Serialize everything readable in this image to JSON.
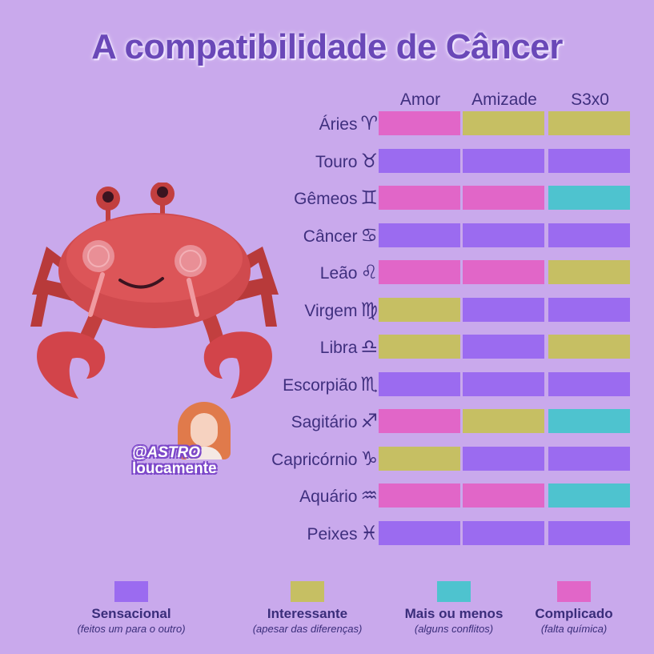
{
  "title": "A compatibilidade de Câncer",
  "columns": [
    "Amor",
    "Amizade",
    "S3x0"
  ],
  "colors": {
    "sensacional": "#9b6bf0",
    "interessante": "#c6bf63",
    "mais_ou_menos": "#4ec3cf",
    "complicado": "#e166c8"
  },
  "rows": [
    {
      "sign": "Áries",
      "symbol": "♈",
      "values": [
        "complicado",
        "interessante",
        "interessante"
      ]
    },
    {
      "sign": "Touro",
      "symbol": "♉",
      "values": [
        "sensacional",
        "sensacional",
        "sensacional"
      ]
    },
    {
      "sign": "Gêmeos",
      "symbol": "♊",
      "values": [
        "complicado",
        "complicado",
        "mais_ou_menos"
      ]
    },
    {
      "sign": "Câncer",
      "symbol": "♋",
      "values": [
        "sensacional",
        "sensacional",
        "sensacional"
      ]
    },
    {
      "sign": "Leão",
      "symbol": "♌",
      "values": [
        "complicado",
        "complicado",
        "interessante"
      ]
    },
    {
      "sign": "Virgem",
      "symbol": "♍",
      "values": [
        "interessante",
        "sensacional",
        "sensacional"
      ]
    },
    {
      "sign": "Libra",
      "symbol": "♎",
      "values": [
        "interessante",
        "sensacional",
        "interessante"
      ]
    },
    {
      "sign": "Escorpião",
      "symbol": "♏",
      "values": [
        "sensacional",
        "sensacional",
        "sensacional"
      ]
    },
    {
      "sign": "Sagitário",
      "symbol": "♐",
      "values": [
        "complicado",
        "interessante",
        "mais_ou_menos"
      ]
    },
    {
      "sign": "Capricórnio",
      "symbol": "♑",
      "values": [
        "interessante",
        "sensacional",
        "sensacional"
      ]
    },
    {
      "sign": "Aquário",
      "symbol": "♒",
      "values": [
        "complicado",
        "complicado",
        "mais_ou_menos"
      ]
    },
    {
      "sign": "Peixes",
      "symbol": "♓",
      "values": [
        "sensacional",
        "sensacional",
        "sensacional"
      ]
    }
  ],
  "legend": [
    {
      "key": "sensacional",
      "title": "Sensacional",
      "subtitle": "(feitos um para o outro)"
    },
    {
      "key": "interessante",
      "title": "Interessante",
      "subtitle": "(apesar das diferenças)"
    },
    {
      "key": "mais_ou_menos",
      "title": "Mais ou menos",
      "subtitle": "(alguns conflitos)"
    },
    {
      "key": "complicado",
      "title": "Complicado",
      "subtitle": "(falta química)"
    }
  ],
  "watermark": {
    "line1": "@ASTRO",
    "line2": "loucamente"
  }
}
